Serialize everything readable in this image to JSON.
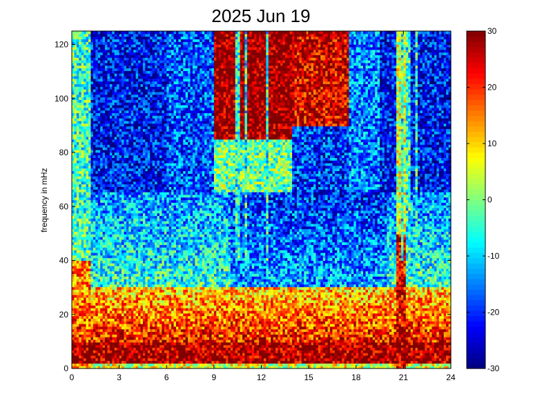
{
  "chart_data": {
    "type": "heatmap",
    "title": "2025 Jun 19",
    "xlabel": "",
    "ylabel": "frequency in mHz",
    "xlim": [
      0,
      24
    ],
    "ylim": [
      0,
      125
    ],
    "x_ticks": [
      0,
      3,
      6,
      9,
      12,
      15,
      18,
      21,
      24
    ],
    "x_tick_labels": [
      "0",
      "3",
      "6",
      "9",
      "12",
      "15",
      "18",
      "21",
      "24"
    ],
    "y_ticks": [
      0,
      20,
      40,
      60,
      80,
      100,
      120
    ],
    "y_tick_labels": [
      "0",
      "20",
      "40",
      "60",
      "80",
      "100",
      "120"
    ],
    "colorbar": {
      "range": [
        -30,
        30
      ],
      "colormap": "jet",
      "ticks": [
        -30,
        -20,
        -10,
        0,
        10,
        20,
        30
      ],
      "tick_labels": [
        "-30",
        "-20",
        "-10",
        "0",
        "10",
        "20",
        "30"
      ]
    },
    "grid": false,
    "description_of_field": {
      "low_frequency_band_0_to_10_mHz": 28,
      "band_10_to_30_mHz": 10,
      "band_30_to_60_mHz_night": -5,
      "band_30_to_60_mHz_midday": -12,
      "high_frequency_above_70_mHz_midday": 30,
      "high_frequency_above_70_mHz_edges": -22,
      "vertical_streaks_hours": [
        10.5,
        11.0,
        12.4,
        20.9,
        21.3,
        21.8
      ]
    }
  }
}
